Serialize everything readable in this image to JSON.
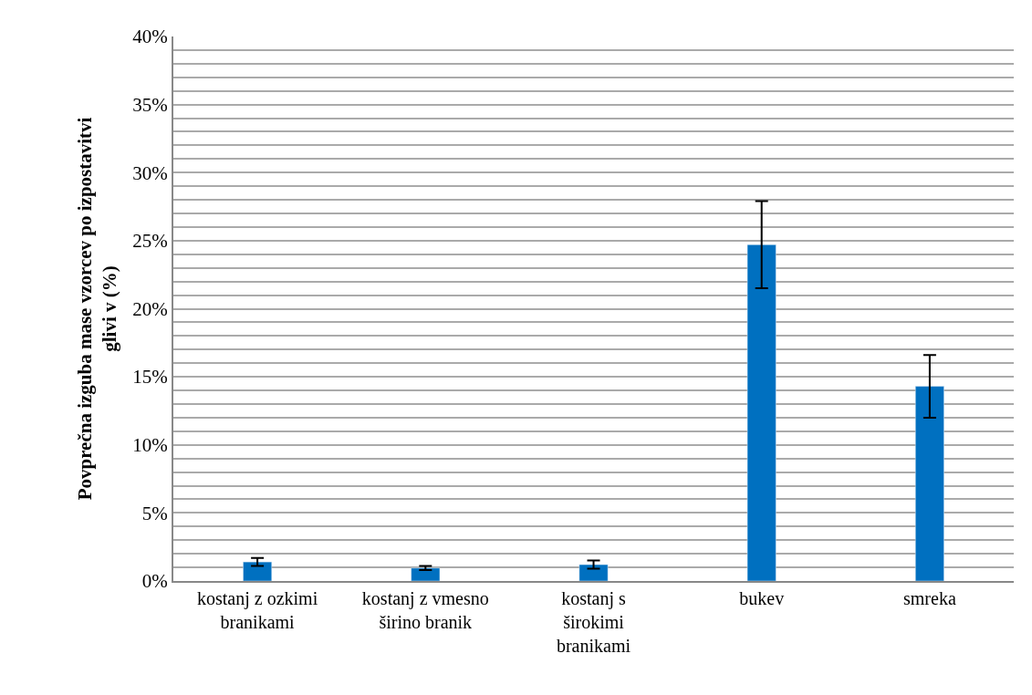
{
  "chart_data": {
    "type": "bar",
    "ylabel": "Povprečna izguba mase vzorcev po izpostavitvi glivi v (%)",
    "categories": [
      "kostanj z ozkimi branikami",
      "kostanj z vmesno širino branik",
      "kostanj s širokimi branikami",
      "bukev",
      "smreka"
    ],
    "values": [
      1.4,
      0.95,
      1.2,
      24.7,
      14.3
    ],
    "errors": [
      0.3,
      0.15,
      0.3,
      3.2,
      2.3
    ],
    "color": "#0070c0",
    "ylim": [
      0,
      40
    ],
    "yticks": [
      {
        "value": 0,
        "label": "0%"
      },
      {
        "value": 1,
        "label": null
      },
      {
        "value": 2,
        "label": null
      },
      {
        "value": 3,
        "label": null
      },
      {
        "value": 4,
        "label": null
      },
      {
        "value": 5,
        "label": "5%"
      },
      {
        "value": 6,
        "label": null
      },
      {
        "value": 7,
        "label": null
      },
      {
        "value": 8,
        "label": null
      },
      {
        "value": 9,
        "label": null
      },
      {
        "value": 10,
        "label": "10%"
      },
      {
        "value": 11,
        "label": null
      },
      {
        "value": 12,
        "label": null
      },
      {
        "value": 13,
        "label": null
      },
      {
        "value": 14,
        "label": null
      },
      {
        "value": 15,
        "label": "15%"
      },
      {
        "value": 16,
        "label": null
      },
      {
        "value": 17,
        "label": null
      },
      {
        "value": 18,
        "label": null
      },
      {
        "value": 19,
        "label": null
      },
      {
        "value": 20,
        "label": "20%"
      },
      {
        "value": 21,
        "label": null
      },
      {
        "value": 22,
        "label": null
      },
      {
        "value": 23,
        "label": null
      },
      {
        "value": 24,
        "label": null
      },
      {
        "value": 25,
        "label": "25%"
      },
      {
        "value": 26,
        "label": null
      },
      {
        "value": 27,
        "label": null
      },
      {
        "value": 28,
        "label": null
      },
      {
        "value": 29,
        "label": null
      },
      {
        "value": 30,
        "label": "30%"
      },
      {
        "value": 31,
        "label": null
      },
      {
        "value": 32,
        "label": null
      },
      {
        "value": 33,
        "label": null
      },
      {
        "value": 34,
        "label": null
      },
      {
        "value": 35,
        "label": "35%"
      },
      {
        "value": 36,
        "label": null
      },
      {
        "value": 37,
        "label": null
      },
      {
        "value": 38,
        "label": null
      },
      {
        "value": 39,
        "label": null
      },
      {
        "value": 40,
        "label": "40%"
      }
    ],
    "grid": "y",
    "legend": false
  }
}
